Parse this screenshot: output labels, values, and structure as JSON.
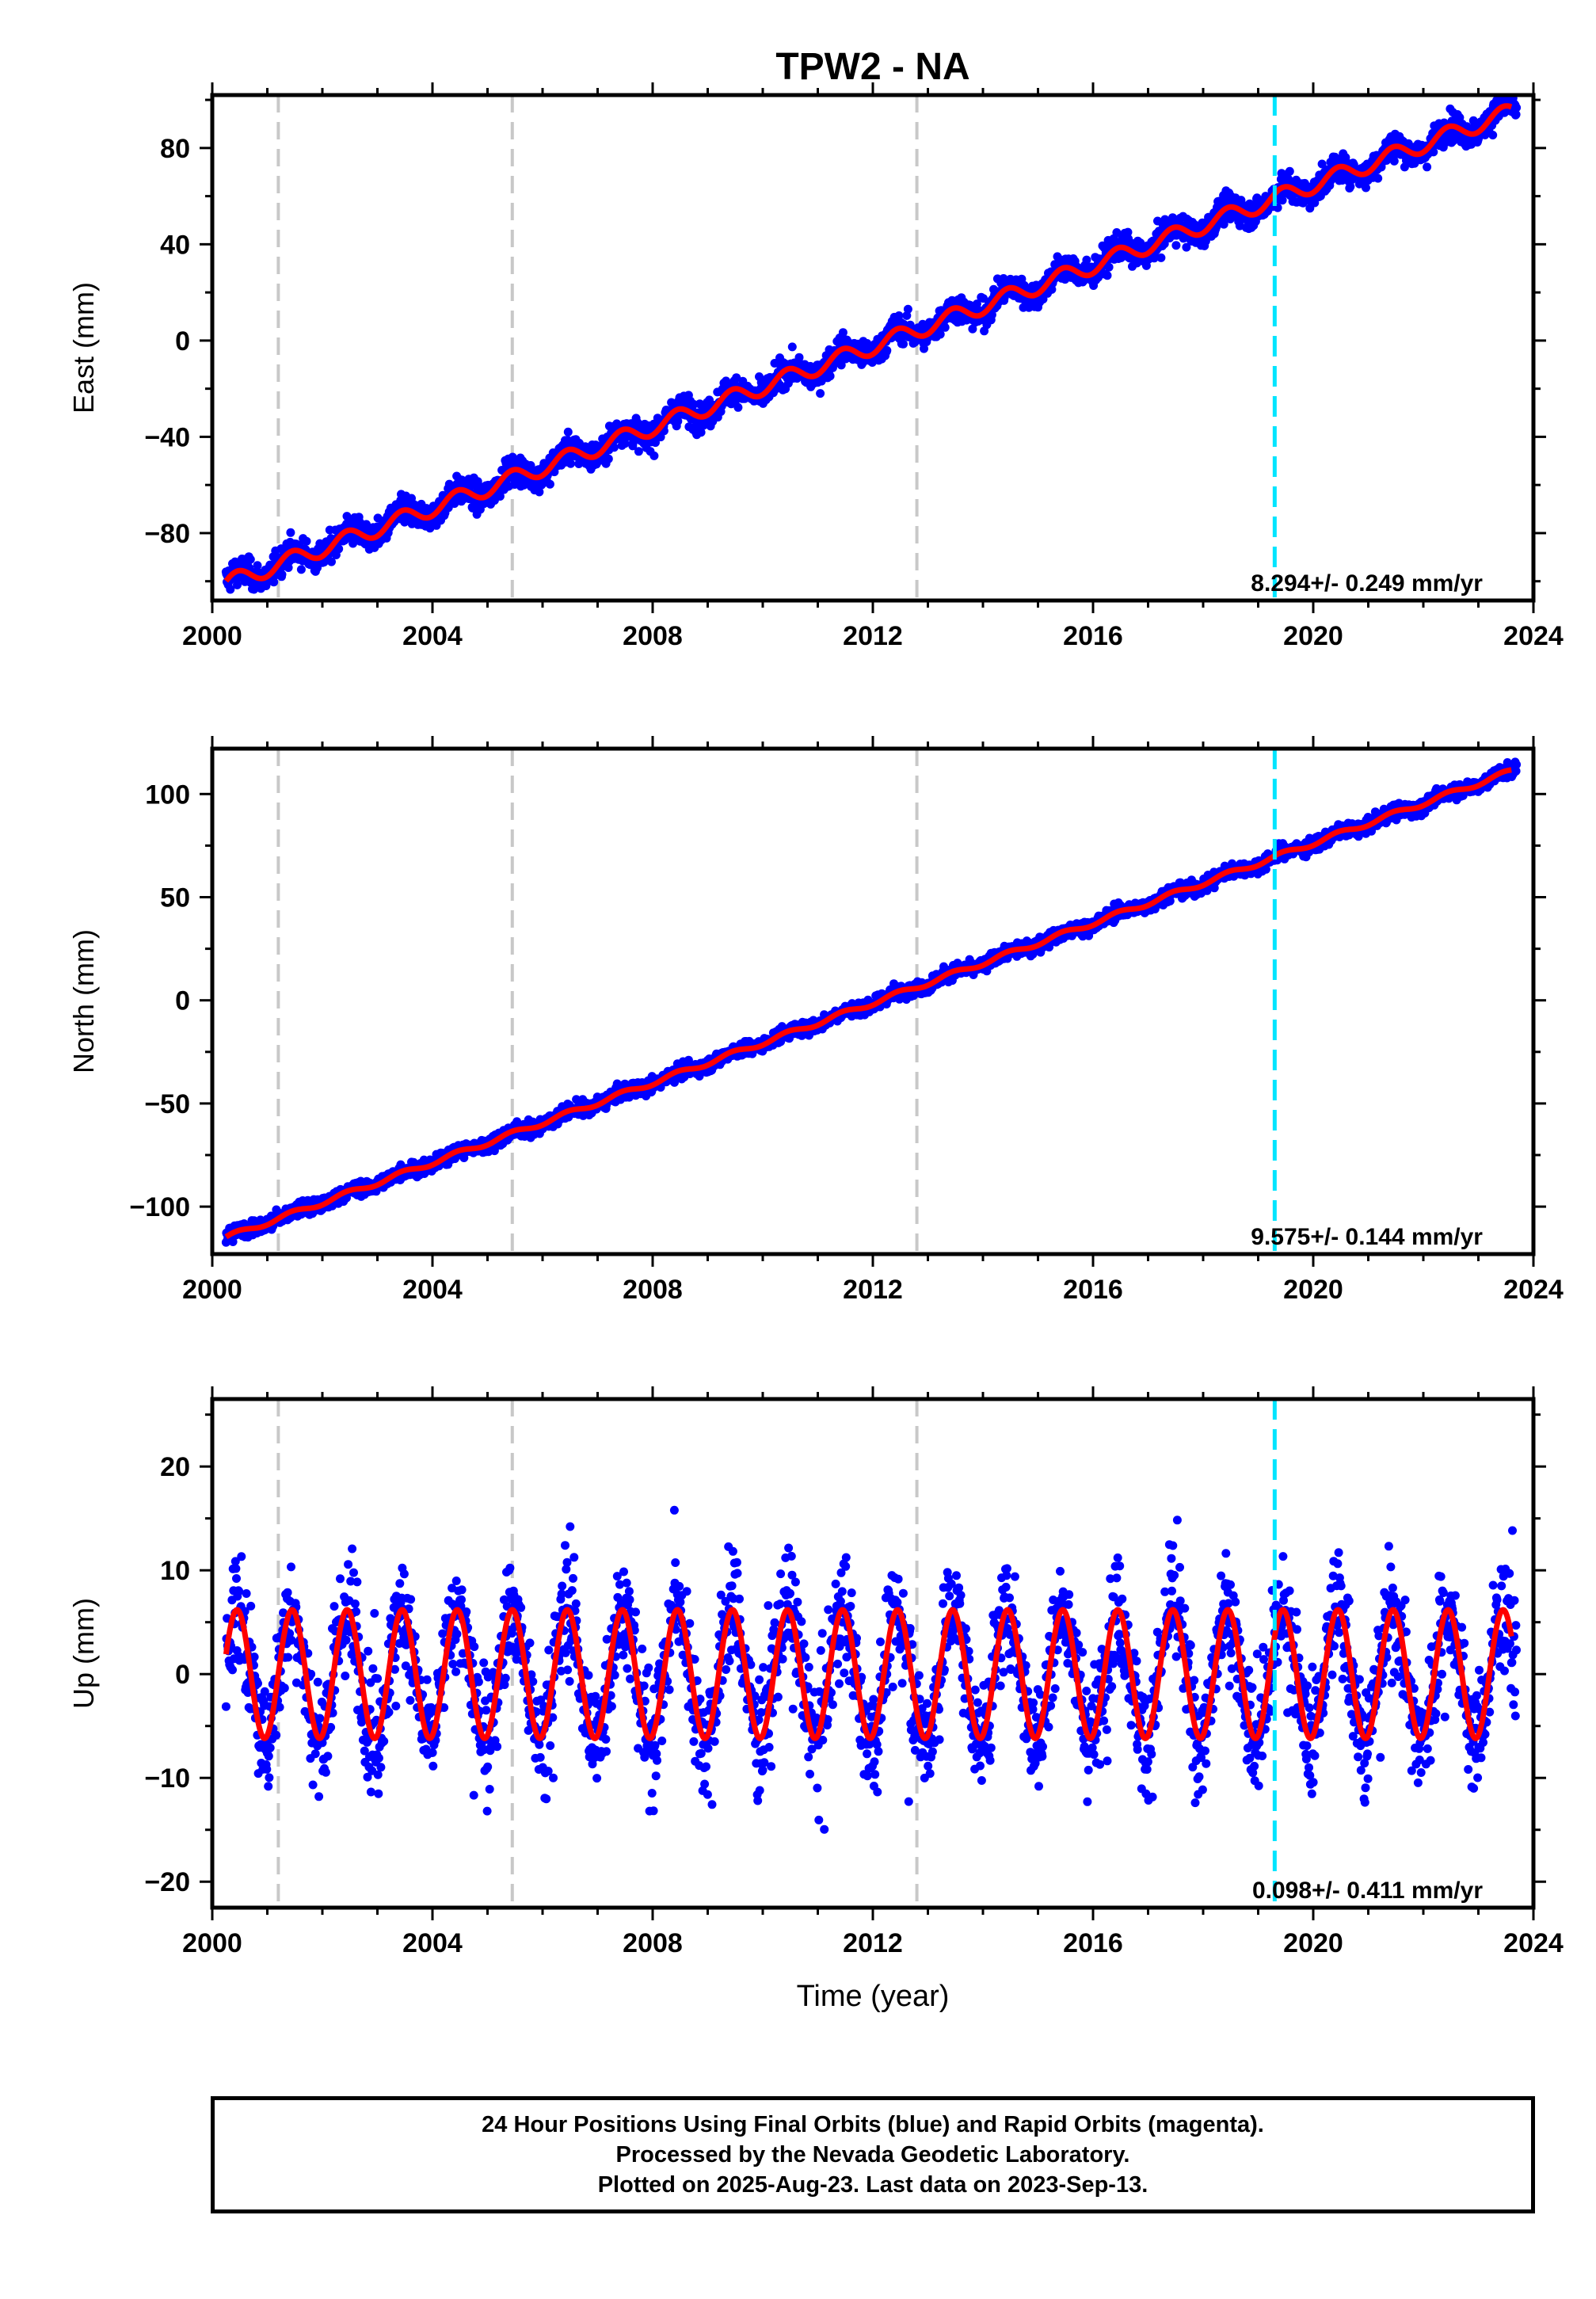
{
  "chart_data": [
    {
      "type": "scatter",
      "title": "TPW2 - NA",
      "xlabel": "",
      "ylabel": "East (mm)",
      "xlim": [
        2000,
        2024
      ],
      "ylim": [
        -108,
        102
      ],
      "xticks": [
        2000,
        2004,
        2008,
        2012,
        2016,
        2020,
        2024
      ],
      "yticks": [
        -80,
        -40,
        0,
        40,
        80
      ],
      "grid": false,
      "rate_label": "8.294+/- 0.249 mm/yr",
      "event_lines": [
        2001.2,
        2005.45,
        2012.8
      ],
      "highlight_line": 2019.3,
      "model": {
        "start": [
          2000.25,
          -101
        ],
        "end": [
          2023.6,
          95
        ],
        "seasonal_amplitude": 3.5
      },
      "series": [
        {
          "kind": "points",
          "color": "#0000ff",
          "x_range": [
            2000.25,
            2023.7
          ],
          "noise": 4.5
        },
        {
          "kind": "line",
          "color": "#ff0000",
          "x_range": [
            2000.25,
            2023.6
          ]
        }
      ]
    },
    {
      "type": "scatter",
      "title": "",
      "xlabel": "",
      "ylabel": "North (mm)",
      "xlim": [
        2000,
        2024
      ],
      "ylim": [
        -123,
        122
      ],
      "xticks": [
        2000,
        2004,
        2008,
        2012,
        2016,
        2020,
        2024
      ],
      "yticks": [
        -100,
        -50,
        0,
        50,
        100
      ],
      "grid": false,
      "rate_label": "9.575+/- 0.144 mm/yr",
      "event_lines": [
        2001.2,
        2005.45,
        2012.8
      ],
      "highlight_line": 2019.3,
      "model": {
        "start": [
          2000.25,
          -115
        ],
        "end": [
          2023.6,
          111
        ],
        "seasonal_amplitude": 1.2
      },
      "series": [
        {
          "kind": "points",
          "color": "#0000ff",
          "x_range": [
            2000.25,
            2023.7
          ],
          "noise": 2.8
        },
        {
          "kind": "line",
          "color": "#ff0000",
          "x_range": [
            2000.25,
            2023.6
          ]
        }
      ]
    },
    {
      "type": "scatter",
      "title": "",
      "xlabel": "Time (year)",
      "ylabel": "Up (mm)",
      "xlim": [
        2000,
        2024
      ],
      "ylim": [
        -22.5,
        26.5
      ],
      "xticks": [
        2000,
        2004,
        2008,
        2012,
        2016,
        2020,
        2024
      ],
      "yticks": [
        -20,
        -10,
        0,
        10,
        20
      ],
      "grid": false,
      "rate_label": "0.098+/- 0.411 mm/yr",
      "event_lines": [
        2001.2,
        2005.45,
        2012.8
      ],
      "highlight_line": 2019.3,
      "model": {
        "start": [
          2000.25,
          0
        ],
        "end": [
          2023.6,
          0
        ],
        "seasonal_amplitude": 6.2
      },
      "series": [
        {
          "kind": "points",
          "color": "#0000ff",
          "x_range": [
            2000.25,
            2023.7
          ],
          "noise": 4.2
        },
        {
          "kind": "line",
          "color": "#ff0000",
          "x_range": [
            2000.25,
            2023.6
          ]
        }
      ]
    }
  ],
  "footer": {
    "line1": "24 Hour Positions Using Final Orbits (blue) and Rapid Orbits (magenta).",
    "line2": "Processed by the Nevada Geodetic Laboratory.",
    "line3": "Plotted on 2025-Aug-23. Last data on 2023-Sep-13."
  }
}
